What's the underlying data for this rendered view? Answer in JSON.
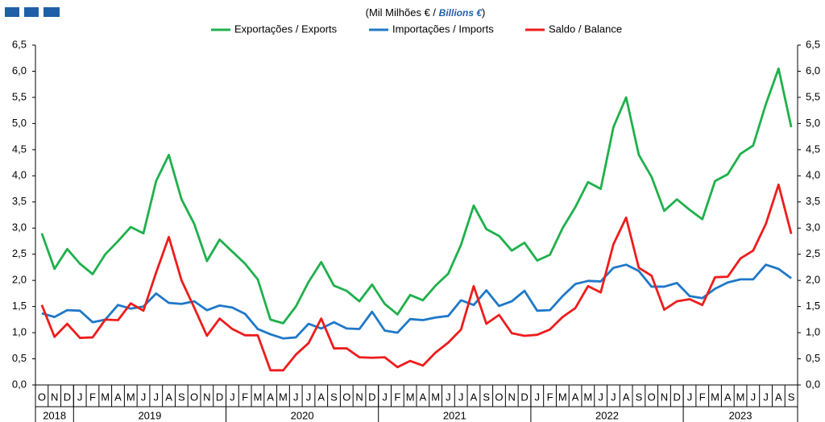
{
  "chart_data": {
    "type": "line",
    "subtitle": [
      "(Mil Milhões € / ",
      "Billions €",
      ")"
    ],
    "categories": [
      "O",
      "N",
      "D",
      "J",
      "F",
      "M",
      "A",
      "M",
      "J",
      "J",
      "A",
      "S",
      "O",
      "N",
      "D",
      "J",
      "F",
      "M",
      "A",
      "M",
      "J",
      "J",
      "A",
      "S",
      "O",
      "N",
      "D",
      "J",
      "F",
      "M",
      "A",
      "M",
      "J",
      "J",
      "A",
      "S",
      "O",
      "N",
      "D",
      "J",
      "F",
      "M",
      "A",
      "M",
      "J",
      "J",
      "A",
      "S",
      "O",
      "N",
      "D",
      "J",
      "F",
      "M",
      "A",
      "M",
      "J",
      "J",
      "A",
      "S"
    ],
    "groups": [
      {
        "label": "2018",
        "span": 3
      },
      {
        "label": "2019",
        "span": 12
      },
      {
        "label": "2020",
        "span": 12
      },
      {
        "label": "2021",
        "span": 12
      },
      {
        "label": "2022",
        "span": 12
      },
      {
        "label": "2023",
        "span": 9
      }
    ],
    "series": [
      {
        "name": "Exportações / Exports",
        "color": "#1fb04b",
        "values": [
          2.9,
          2.22,
          2.6,
          2.32,
          2.12,
          2.5,
          2.75,
          3.02,
          2.9,
          3.9,
          4.4,
          3.55,
          3.08,
          2.37,
          2.78,
          2.55,
          2.32,
          2.02,
          1.25,
          1.18,
          1.5,
          1.97,
          2.35,
          1.9,
          1.8,
          1.6,
          1.92,
          1.55,
          1.35,
          1.72,
          1.62,
          1.9,
          2.13,
          2.68,
          3.43,
          2.98,
          2.85,
          2.57,
          2.72,
          2.38,
          2.49,
          3.0,
          3.4,
          3.88,
          3.75,
          4.93,
          5.5,
          4.4,
          3.98,
          3.33,
          3.55,
          3.35,
          3.17,
          3.9,
          4.03,
          4.42,
          4.58,
          5.37,
          6.05,
          4.93
        ]
      },
      {
        "name": "Importações / Imports",
        "color": "#1f78c8",
        "values": [
          1.37,
          1.3,
          1.43,
          1.42,
          1.2,
          1.25,
          1.53,
          1.46,
          1.5,
          1.75,
          1.57,
          1.55,
          1.6,
          1.43,
          1.52,
          1.48,
          1.36,
          1.07,
          0.97,
          0.89,
          0.91,
          1.17,
          1.08,
          1.2,
          1.08,
          1.07,
          1.4,
          1.04,
          1.0,
          1.26,
          1.24,
          1.29,
          1.32,
          1.62,
          1.53,
          1.81,
          1.51,
          1.6,
          1.8,
          1.42,
          1.43,
          1.7,
          1.93,
          1.99,
          1.98,
          2.24,
          2.3,
          2.18,
          1.88,
          1.88,
          1.95,
          1.7,
          1.66,
          1.84,
          1.96,
          2.02,
          2.02,
          2.3,
          2.22,
          2.04
        ]
      },
      {
        "name": "Saldo / Balance",
        "color": "#ee1c1c",
        "values": [
          1.53,
          0.92,
          1.17,
          0.9,
          0.91,
          1.25,
          1.24,
          1.56,
          1.42,
          2.15,
          2.83,
          2.0,
          1.48,
          0.94,
          1.27,
          1.07,
          0.95,
          0.95,
          0.28,
          0.28,
          0.58,
          0.8,
          1.27,
          0.7,
          0.7,
          0.53,
          0.52,
          0.53,
          0.34,
          0.46,
          0.37,
          0.62,
          0.81,
          1.06,
          1.89,
          1.17,
          1.34,
          0.99,
          0.94,
          0.96,
          1.06,
          1.3,
          1.47,
          1.89,
          1.77,
          2.69,
          3.2,
          2.24,
          2.09,
          1.44,
          1.6,
          1.64,
          1.53,
          2.06,
          2.07,
          2.42,
          2.57,
          3.08,
          3.83,
          2.89
        ]
      }
    ],
    "ylim": [
      0,
      6.5
    ],
    "yticks": [
      {
        "value": 0,
        "label": "0,0"
      },
      {
        "value": 0.5,
        "label": "0,5"
      },
      {
        "value": 1,
        "label": "1,0"
      },
      {
        "value": 1.5,
        "label": "1,5"
      },
      {
        "value": 2,
        "label": "2,0"
      },
      {
        "value": 2.5,
        "label": "2,5"
      },
      {
        "value": 3,
        "label": "3,0"
      },
      {
        "value": 3.5,
        "label": "3,5"
      },
      {
        "value": 4,
        "label": "4,0"
      },
      {
        "value": 4.5,
        "label": "4,5"
      },
      {
        "value": 5,
        "label": "5,0"
      },
      {
        "value": 5.5,
        "label": "5,5"
      },
      {
        "value": 6,
        "label": "6,0"
      },
      {
        "value": 6.5,
        "label": "6,5"
      }
    ],
    "y2lim": [
      0,
      6.5
    ],
    "y2ticks": [
      {
        "value": 0,
        "label": "0,0"
      },
      {
        "value": 0.5,
        "label": "0,5"
      },
      {
        "value": 1,
        "label": "1,0"
      },
      {
        "value": 1.5,
        "label": "1,5"
      },
      {
        "value": 2,
        "label": "2,0"
      },
      {
        "value": 2.5,
        "label": "2,5"
      },
      {
        "value": 3,
        "label": "3,0"
      },
      {
        "value": 3.5,
        "label": "3,5"
      },
      {
        "value": 4,
        "label": "4,0"
      },
      {
        "value": 4.5,
        "label": "4,5"
      },
      {
        "value": 5,
        "label": "5,0"
      },
      {
        "value": 5.5,
        "label": "5,5"
      },
      {
        "value": 6,
        "label": "6,0"
      },
      {
        "value": 6.5,
        "label": "6,5"
      }
    ],
    "grid": false
  }
}
